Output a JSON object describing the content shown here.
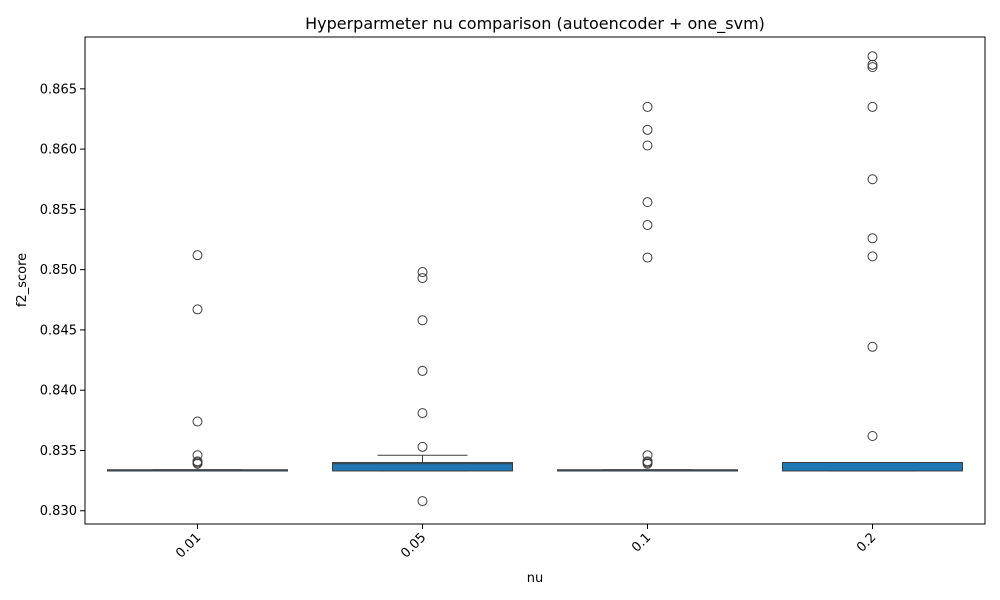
{
  "chart_data": {
    "type": "box",
    "title": "Hyperparmeter nu comparison (autoencoder + one_svm)",
    "xlabel": "nu",
    "ylabel": "f2_score",
    "ylim": [
      0.8289,
      0.8693
    ],
    "yticks": [
      0.83,
      0.835,
      0.84,
      0.845,
      0.85,
      0.855,
      0.86,
      0.865
    ],
    "ytick_labels": [
      "0.830",
      "0.835",
      "0.840",
      "0.845",
      "0.850",
      "0.855",
      "0.860",
      "0.865"
    ],
    "categories": [
      "0.01",
      "0.05",
      "0.1",
      "0.2"
    ],
    "box_color": "#1f77b4",
    "boxes": [
      {
        "category": "0.01",
        "q1": 0.8333,
        "median": 0.8333,
        "q3": 0.8334,
        "whisker_low": 0.8333,
        "whisker_high": 0.8334,
        "outliers": [
          0.8512,
          0.8467,
          0.8374,
          0.8346,
          0.8341,
          0.834,
          0.8339
        ]
      },
      {
        "category": "0.05",
        "q1": 0.8333,
        "median": 0.8339,
        "q3": 0.834,
        "whisker_low": 0.8333,
        "whisker_high": 0.8346,
        "outliers": [
          0.8498,
          0.8493,
          0.8458,
          0.8416,
          0.8381,
          0.8353,
          0.8308
        ]
      },
      {
        "category": "0.1",
        "q1": 0.8333,
        "median": 0.8333,
        "q3": 0.8334,
        "whisker_low": 0.8333,
        "whisker_high": 0.8334,
        "outliers": [
          0.8635,
          0.8616,
          0.8603,
          0.8556,
          0.8537,
          0.851,
          0.8346,
          0.8341,
          0.834,
          0.8339
        ]
      },
      {
        "category": "0.2",
        "q1": 0.8333,
        "median": 0.834,
        "q3": 0.834,
        "whisker_low": 0.8333,
        "whisker_high": 0.834,
        "outliers": [
          0.8677,
          0.867,
          0.8668,
          0.8635,
          0.8575,
          0.8526,
          0.8511,
          0.8436,
          0.8362
        ]
      }
    ]
  }
}
